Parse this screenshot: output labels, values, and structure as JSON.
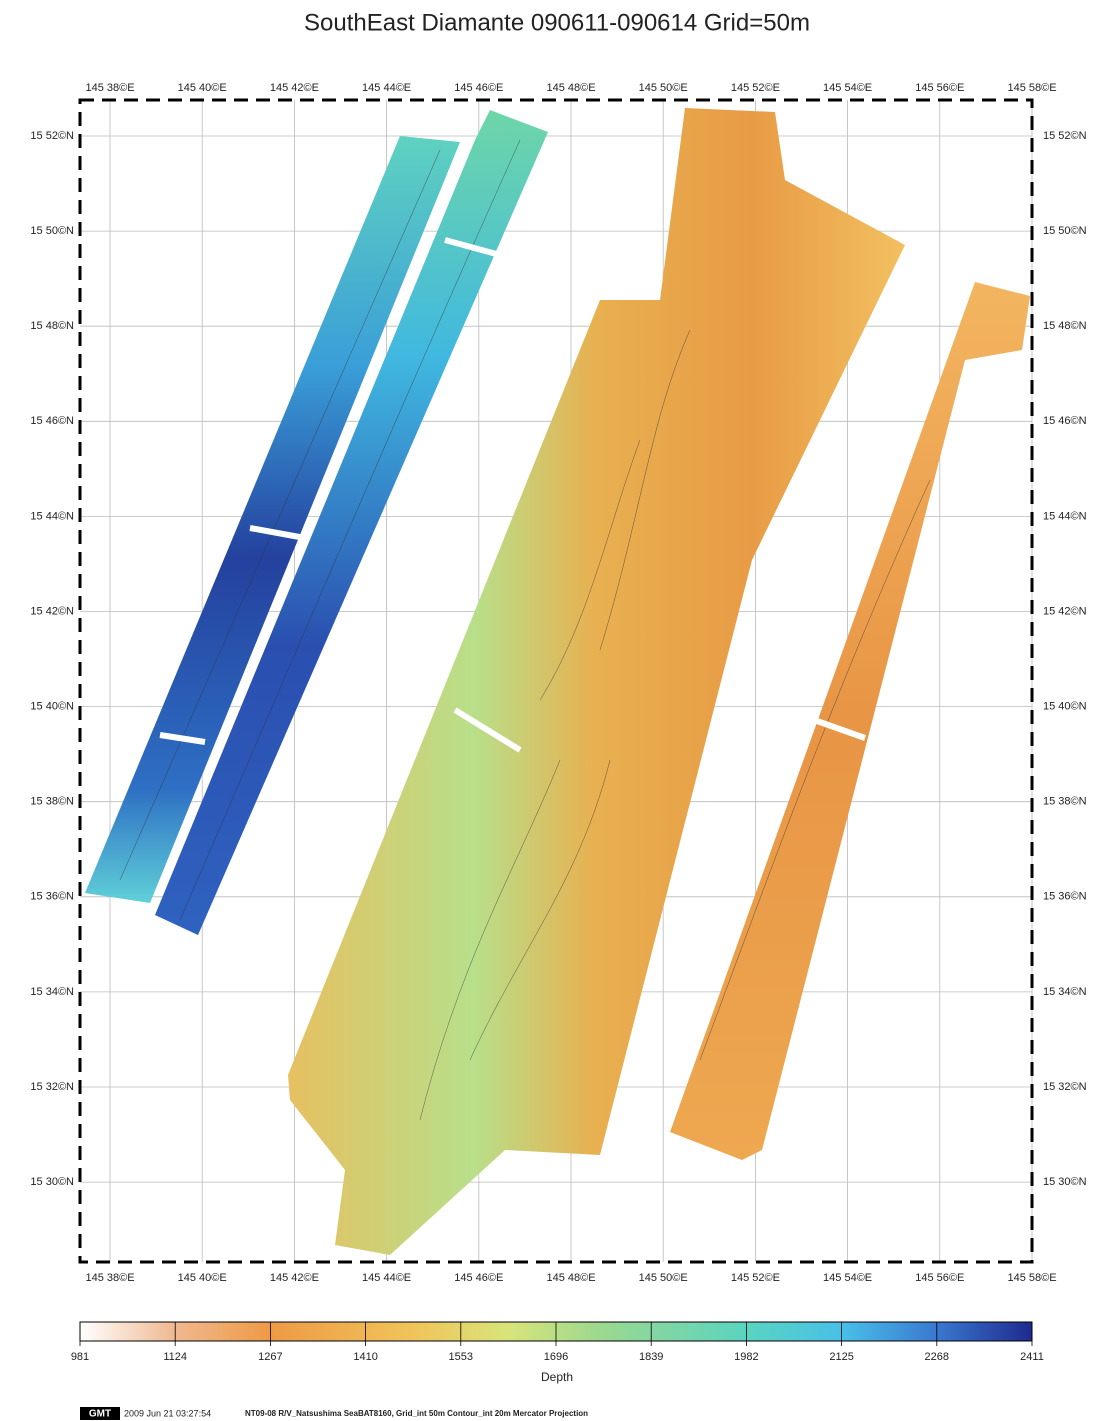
{
  "title": "SouthEast Diamante 090611-090614 Grid=50m",
  "map": {
    "lon_labels": [
      "145 38©E",
      "145 40©E",
      "145 42©E",
      "145 44©E",
      "145 46©E",
      "145 48©E",
      "145 50©E",
      "145 52©E",
      "145 54©E",
      "145 56©E",
      "145 58©E"
    ],
    "lat_labels": [
      "15 52©N",
      "15 50©N",
      "15 48©N",
      "15 46©N",
      "15 44©N",
      "15 42©N",
      "15 40©N",
      "15 38©N",
      "15 36©N",
      "15 34©N",
      "15 32©N",
      "15 30©N"
    ]
  },
  "colorbar": {
    "label": "Depth",
    "range": [
      981,
      2411
    ],
    "ticks": [
      981,
      1124,
      1267,
      1410,
      1553,
      1696,
      1839,
      1982,
      2125,
      2268,
      2411
    ]
  },
  "footer": {
    "badge": "GMT",
    "timestamp": "2009 Jun 21 03:27:54",
    "caption": "NT09-08 R/V_Natsushima SeaBAT8160, Grid_int 50m Contour_int 20m  Mercator Projection"
  }
}
